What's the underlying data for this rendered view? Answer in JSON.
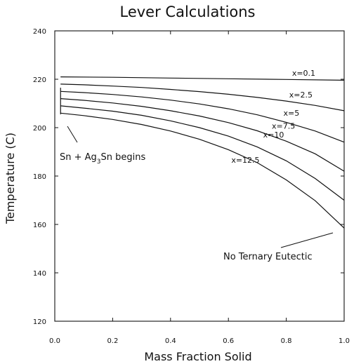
{
  "chart_data": {
    "type": "line",
    "title": "Lever Calculations",
    "xlabel": "Mass Fraction Solid",
    "ylabel": "Temperature (C)",
    "xlim": [
      0.0,
      1.0
    ],
    "ylim": [
      120,
      240
    ],
    "x_ticks": [
      0.0,
      0.2,
      0.4,
      0.6,
      0.8,
      1.0
    ],
    "x_tick_labels": [
      "0.0",
      "0.2",
      "0.4",
      "0.6",
      "0.8",
      "1.0"
    ],
    "y_ticks": [
      120,
      140,
      160,
      180,
      200,
      220,
      240
    ],
    "y_tick_labels": [
      "120",
      "140",
      "160",
      "180",
      "200",
      "220",
      "240"
    ],
    "grid": false,
    "series": [
      {
        "name": "x=0.1",
        "x": [
          0.02,
          0.2,
          0.4,
          0.6,
          0.8,
          1.0
        ],
        "y": [
          221.0,
          220.8,
          220.5,
          220.2,
          219.9,
          219.6
        ]
      },
      {
        "name": "x=2.5",
        "x": [
          0.02,
          0.1,
          0.2,
          0.3,
          0.4,
          0.5,
          0.6,
          0.7,
          0.8,
          0.9,
          1.0
        ],
        "y": [
          218.0,
          217.7,
          217.2,
          216.6,
          215.8,
          214.9,
          213.8,
          212.5,
          211.0,
          209.2,
          207.0
        ]
      },
      {
        "name": "x=5",
        "x": [
          0.02,
          0.1,
          0.2,
          0.3,
          0.4,
          0.5,
          0.6,
          0.7,
          0.8,
          0.9,
          1.0
        ],
        "y": [
          215.0,
          214.5,
          213.7,
          212.7,
          211.4,
          209.8,
          207.8,
          205.3,
          202.2,
          198.6,
          194.0
        ]
      },
      {
        "name": "x=7.5",
        "x": [
          0.02,
          0.1,
          0.2,
          0.3,
          0.4,
          0.5,
          0.6,
          0.7,
          0.8,
          0.9,
          1.0
        ],
        "y": [
          212.0,
          211.3,
          210.2,
          208.8,
          207.0,
          204.8,
          202.1,
          198.7,
          194.4,
          189.2,
          182.0
        ]
      },
      {
        "name": "x=10",
        "x": [
          0.02,
          0.1,
          0.2,
          0.3,
          0.4,
          0.5,
          0.6,
          0.7,
          0.8,
          0.9,
          1.0
        ],
        "y": [
          209.0,
          208.1,
          206.8,
          205.1,
          202.8,
          200.0,
          196.5,
          192.0,
          186.3,
          179.0,
          170.0
        ]
      },
      {
        "name": "x=12.5",
        "x": [
          0.02,
          0.1,
          0.2,
          0.3,
          0.4,
          0.5,
          0.6,
          0.7,
          0.8,
          0.9,
          1.0
        ],
        "y": [
          206.0,
          205.0,
          203.4,
          201.3,
          198.6,
          195.2,
          190.9,
          185.5,
          178.4,
          169.8,
          158.5
        ]
      }
    ],
    "initial_drop": {
      "x": [
        0.02,
        0.02
      ],
      "y": [
        216.5,
        205.5
      ]
    },
    "annotations": {
      "start": {
        "pre": "Sn + Ag",
        "sub": "3",
        "post": "Sn begins"
      },
      "end": {
        "text": "No Ternary Eutectic"
      }
    },
    "colors": {
      "ink": "#111111",
      "background": "#ffffff"
    }
  }
}
